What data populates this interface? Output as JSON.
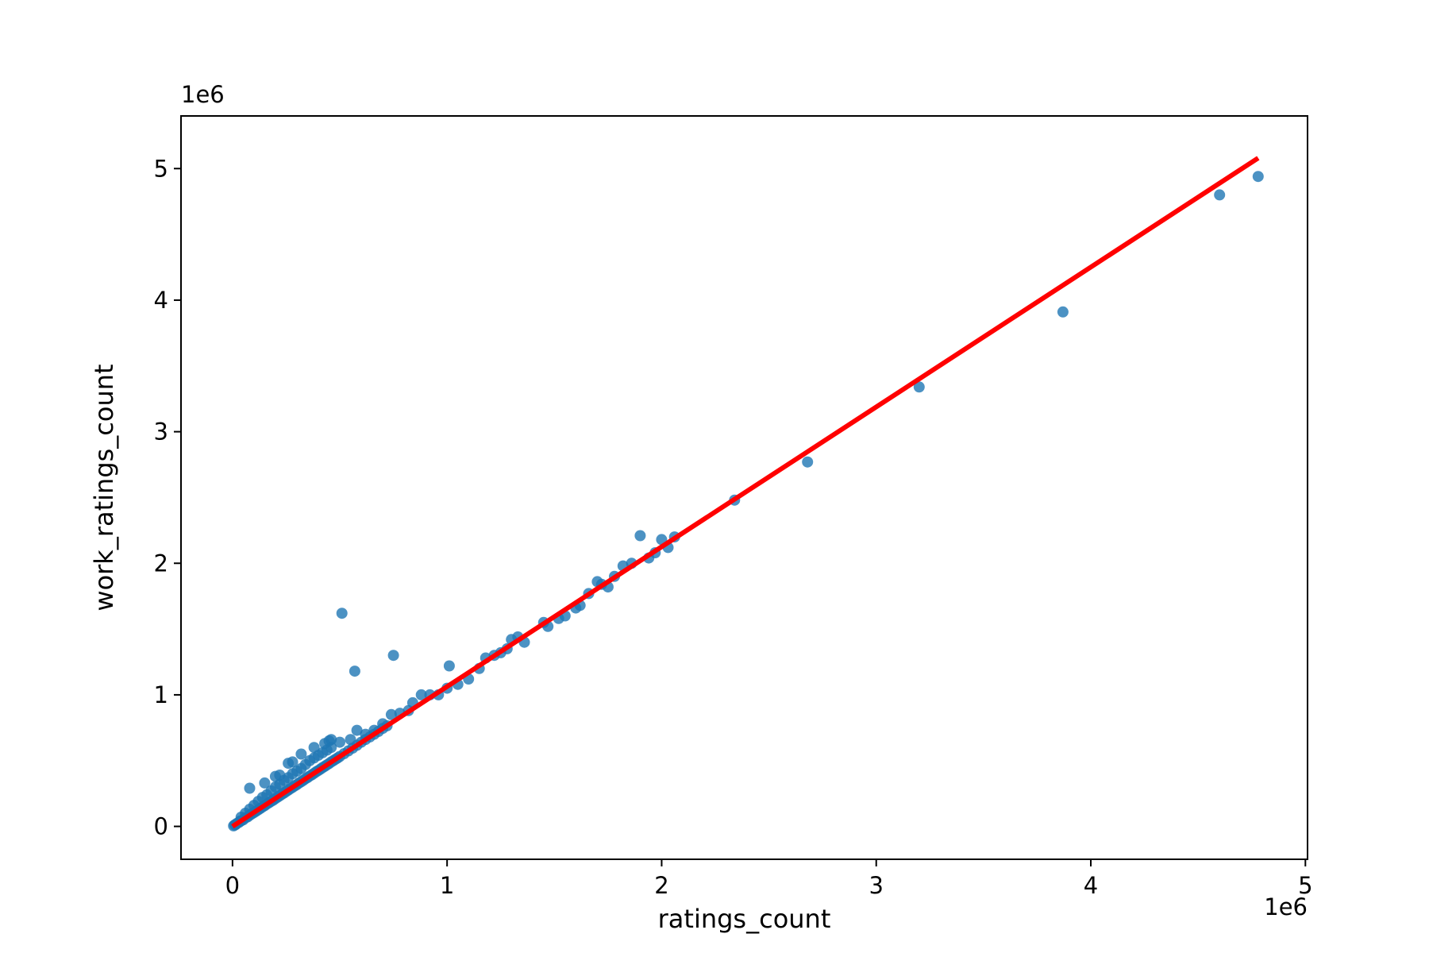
{
  "chart_data": {
    "type": "scatter",
    "title": "",
    "xlabel": "ratings_count",
    "ylabel": "work_ratings_count",
    "x_offset_label": "1e6",
    "y_offset_label": "1e6",
    "xlim": [
      -0.24,
      5.01
    ],
    "ylim": [
      -0.25,
      5.4
    ],
    "xticks": [
      0,
      1,
      2,
      3,
      4,
      5
    ],
    "yticks": [
      0,
      1,
      2,
      3,
      4,
      5
    ],
    "xtick_labels": [
      "0",
      "1",
      "2",
      "3",
      "4",
      "5"
    ],
    "ytick_labels": [
      "0",
      "1",
      "2",
      "3",
      "4",
      "5"
    ],
    "grid": false,
    "colors": {
      "points": "#1f77b4",
      "regression_line": "#ff0000"
    },
    "regression_line": {
      "x": [
        0.0,
        4.78
      ],
      "y": [
        0.0,
        5.08
      ]
    },
    "series": [
      {
        "points": [
          [
            0.005,
            0.004
          ],
          [
            0.01,
            0.011
          ],
          [
            0.015,
            0.014
          ],
          [
            0.02,
            0.022
          ],
          [
            0.03,
            0.03
          ],
          [
            0.035,
            0.04
          ],
          [
            0.04,
            0.043
          ],
          [
            0.05,
            0.05
          ],
          [
            0.06,
            0.065
          ],
          [
            0.07,
            0.072
          ],
          [
            0.08,
            0.085
          ],
          [
            0.09,
            0.095
          ],
          [
            0.1,
            0.105
          ],
          [
            0.11,
            0.116
          ],
          [
            0.12,
            0.126
          ],
          [
            0.13,
            0.137
          ],
          [
            0.14,
            0.148
          ],
          [
            0.15,
            0.158
          ],
          [
            0.16,
            0.17
          ],
          [
            0.17,
            0.18
          ],
          [
            0.18,
            0.19
          ],
          [
            0.19,
            0.2
          ],
          [
            0.2,
            0.212
          ],
          [
            0.21,
            0.222
          ],
          [
            0.22,
            0.233
          ],
          [
            0.23,
            0.244
          ],
          [
            0.24,
            0.254
          ],
          [
            0.25,
            0.265
          ],
          [
            0.26,
            0.276
          ],
          [
            0.27,
            0.287
          ],
          [
            0.28,
            0.297
          ],
          [
            0.29,
            0.308
          ],
          [
            0.3,
            0.318
          ],
          [
            0.31,
            0.33
          ],
          [
            0.32,
            0.34
          ],
          [
            0.33,
            0.35
          ],
          [
            0.34,
            0.362
          ],
          [
            0.35,
            0.372
          ],
          [
            0.36,
            0.383
          ],
          [
            0.37,
            0.393
          ],
          [
            0.38,
            0.404
          ],
          [
            0.39,
            0.415
          ],
          [
            0.4,
            0.425
          ],
          [
            0.41,
            0.436
          ],
          [
            0.42,
            0.447
          ],
          [
            0.43,
            0.457
          ],
          [
            0.44,
            0.468
          ],
          [
            0.45,
            0.478
          ],
          [
            0.46,
            0.49
          ],
          [
            0.47,
            0.5
          ],
          [
            0.48,
            0.51
          ],
          [
            0.49,
            0.52
          ],
          [
            0.5,
            0.532
          ],
          [
            0.52,
            0.553
          ],
          [
            0.54,
            0.574
          ],
          [
            0.56,
            0.595
          ],
          [
            0.58,
            0.617
          ],
          [
            0.6,
            0.64
          ],
          [
            0.62,
            0.66
          ],
          [
            0.64,
            0.68
          ],
          [
            0.66,
            0.7
          ],
          [
            0.68,
            0.722
          ],
          [
            0.7,
            0.745
          ],
          [
            0.72,
            0.765
          ],
          [
            0.04,
            0.07
          ],
          [
            0.06,
            0.1
          ],
          [
            0.08,
            0.13
          ],
          [
            0.1,
            0.16
          ],
          [
            0.12,
            0.19
          ],
          [
            0.14,
            0.22
          ],
          [
            0.16,
            0.24
          ],
          [
            0.18,
            0.27
          ],
          [
            0.2,
            0.3
          ],
          [
            0.22,
            0.32
          ],
          [
            0.24,
            0.35
          ],
          [
            0.26,
            0.37
          ],
          [
            0.28,
            0.4
          ],
          [
            0.3,
            0.42
          ],
          [
            0.32,
            0.44
          ],
          [
            0.34,
            0.47
          ],
          [
            0.36,
            0.5
          ],
          [
            0.38,
            0.52
          ],
          [
            0.4,
            0.54
          ],
          [
            0.42,
            0.56
          ],
          [
            0.44,
            0.58
          ],
          [
            0.46,
            0.6
          ],
          [
            0.08,
            0.29
          ],
          [
            0.15,
            0.33
          ],
          [
            0.2,
            0.38
          ],
          [
            0.22,
            0.39
          ],
          [
            0.26,
            0.48
          ],
          [
            0.28,
            0.49
          ],
          [
            0.32,
            0.55
          ],
          [
            0.38,
            0.6
          ],
          [
            0.43,
            0.63
          ],
          [
            0.45,
            0.65
          ],
          [
            0.46,
            0.66
          ],
          [
            0.5,
            0.64
          ],
          [
            0.55,
            0.66
          ],
          [
            0.58,
            0.73
          ],
          [
            0.62,
            0.7
          ],
          [
            0.66,
            0.73
          ],
          [
            0.7,
            0.78
          ],
          [
            0.74,
            0.85
          ],
          [
            0.78,
            0.86
          ],
          [
            0.82,
            0.88
          ],
          [
            0.84,
            0.94
          ],
          [
            0.88,
            1.0
          ],
          [
            0.92,
            1.0
          ],
          [
            0.96,
            1.0
          ],
          [
            1.0,
            1.05
          ],
          [
            1.05,
            1.08
          ],
          [
            1.1,
            1.12
          ],
          [
            1.15,
            1.2
          ],
          [
            1.18,
            1.28
          ],
          [
            1.22,
            1.3
          ],
          [
            1.25,
            1.32
          ],
          [
            1.28,
            1.35
          ],
          [
            1.3,
            1.42
          ],
          [
            1.33,
            1.44
          ],
          [
            1.36,
            1.4
          ],
          [
            1.45,
            1.55
          ],
          [
            1.47,
            1.52
          ],
          [
            1.52,
            1.58
          ],
          [
            1.55,
            1.6
          ],
          [
            1.6,
            1.66
          ],
          [
            1.62,
            1.68
          ],
          [
            1.66,
            1.77
          ],
          [
            1.7,
            1.86
          ],
          [
            1.72,
            1.84
          ],
          [
            1.75,
            1.82
          ],
          [
            1.78,
            1.9
          ],
          [
            1.82,
            1.98
          ],
          [
            1.86,
            2.0
          ],
          [
            1.9,
            2.21
          ],
          [
            1.94,
            2.04
          ],
          [
            1.97,
            2.08
          ],
          [
            2.0,
            2.18
          ],
          [
            2.03,
            2.12
          ],
          [
            2.06,
            2.2
          ],
          [
            0.51,
            1.62
          ],
          [
            0.57,
            1.18
          ],
          [
            0.75,
            1.3
          ],
          [
            1.01,
            1.22
          ],
          [
            2.34,
            2.48
          ],
          [
            2.68,
            2.77
          ],
          [
            3.2,
            3.34
          ],
          [
            3.87,
            3.91
          ],
          [
            4.6,
            4.8
          ],
          [
            4.78,
            4.94
          ]
        ]
      }
    ]
  }
}
